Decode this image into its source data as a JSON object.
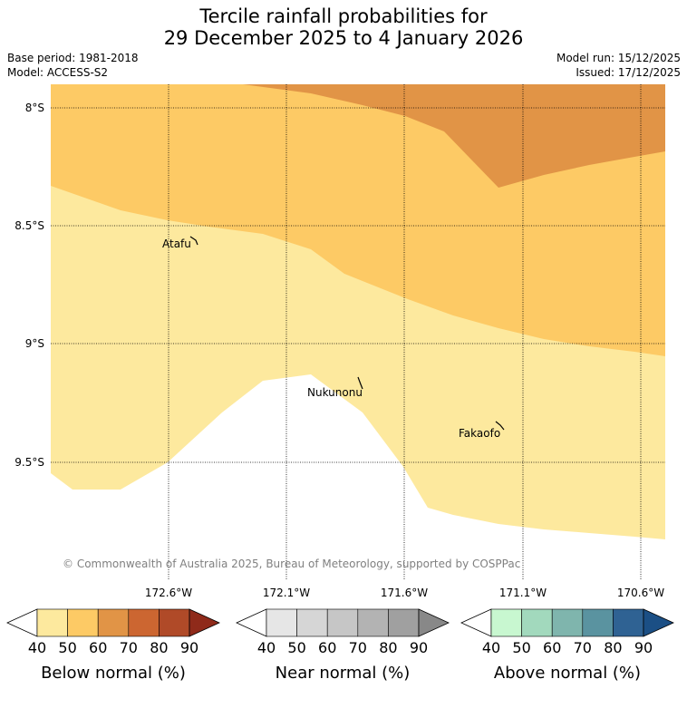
{
  "header": {
    "title_line1": "Tercile rainfall probabilities for",
    "title_line2": "29 December 2025 to 4 January 2026",
    "base_period": "Base period: 1981-2018",
    "model": "Model: ACCESS-S2",
    "model_run": "Model run: 15/12/2025",
    "issued": "Issued: 17/12/2025"
  },
  "map": {
    "lat_labels": [
      "8°S",
      "8.5°S",
      "9°S",
      "9.5°S"
    ],
    "lon_labels": [
      "172.6°W",
      "172.1°W",
      "171.6°W",
      "171.1°W",
      "170.6°W"
    ],
    "places": [
      "Atafu",
      "Nukunonu",
      "Fakaofo"
    ],
    "copyright": "© Commonwealth of Australia 2025, Bureau of Meteorology, supported by COSPPac",
    "colors": {
      "below_40_50": "#fde99e",
      "below_50_60": "#fdca65",
      "below_60_70": "#e19446",
      "grid": "#000000"
    }
  },
  "legends": [
    {
      "name": "below-normal",
      "label": "Below normal (%)",
      "ticks": [
        "40",
        "50",
        "60",
        "70",
        "80",
        "90"
      ],
      "colors": [
        "#ffffff",
        "#fde99e",
        "#fdca65",
        "#e19446",
        "#cc6631",
        "#b04a28",
        "#8f2a1a"
      ]
    },
    {
      "name": "near-normal",
      "label": "Near normal (%)",
      "ticks": [
        "40",
        "50",
        "60",
        "70",
        "80",
        "90"
      ],
      "colors": [
        "#ffffff",
        "#e6e6e6",
        "#d6d6d6",
        "#c6c6c6",
        "#b3b3b3",
        "#a0a0a0",
        "#888888"
      ]
    },
    {
      "name": "above-normal",
      "label": "Above normal (%)",
      "ticks": [
        "40",
        "50",
        "60",
        "70",
        "80",
        "90"
      ],
      "colors": [
        "#ffffff",
        "#c8f7d0",
        "#a2d9bd",
        "#7fb5ad",
        "#5a93a0",
        "#2f6293",
        "#1b4f85"
      ]
    }
  ]
}
